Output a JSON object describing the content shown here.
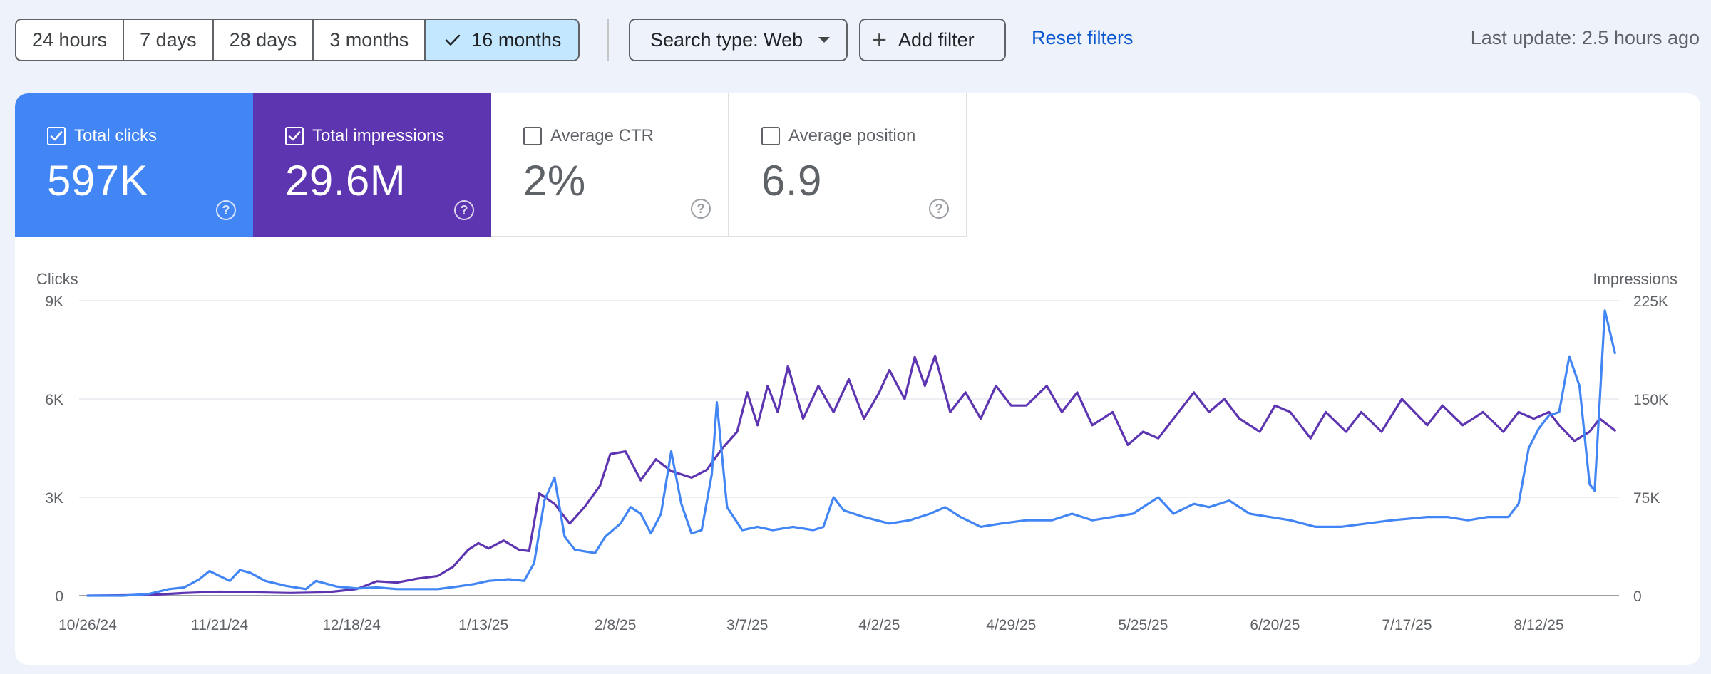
{
  "toolbar": {
    "date_ranges": [
      "24 hours",
      "7 days",
      "28 days",
      "3 months",
      "16 months"
    ],
    "selected_range": "16 months",
    "search_type": "Search type: Web",
    "add_filter": "Add filter",
    "reset_filters": "Reset filters",
    "last_update": "Last update: 2.5 hours ago"
  },
  "metrics": [
    {
      "label": "Total clicks",
      "value": "597K",
      "checked": true,
      "color": "#4285f4"
    },
    {
      "label": "Total impressions",
      "value": "29.6M",
      "checked": true,
      "color": "#5e35b1"
    },
    {
      "label": "Average CTR",
      "value": "2%",
      "checked": false
    },
    {
      "label": "Average position",
      "value": "6.9",
      "checked": false
    }
  ],
  "colors": {
    "clicks": "#4285f4",
    "impressions": "#5e35b1",
    "selected_range_bg": "#c2e7ff",
    "link": "#0b57d0"
  },
  "chart_data": {
    "type": "line",
    "ylabel_left": "Clicks",
    "ylabel_right": "Impressions",
    "yticks_left": [
      "0",
      "3K",
      "6K",
      "9K"
    ],
    "yticks_right": [
      "0",
      "75K",
      "150K",
      "225K"
    ],
    "ylim_left": [
      0,
      9000
    ],
    "ylim_right": [
      0,
      225000
    ],
    "xticks": [
      "10/26/24",
      "11/21/24",
      "12/18/24",
      "1/13/25",
      "2/8/25",
      "3/7/25",
      "4/2/25",
      "4/29/25",
      "5/25/25",
      "6/20/25",
      "7/17/25",
      "8/12/25"
    ],
    "x_start": "2024-10-26",
    "x_end": "2025-08-23",
    "grid": true,
    "series": [
      {
        "name": "Clicks",
        "axis": "left",
        "color": "#4285f4",
        "points": [
          [
            "2024-10-26",
            0
          ],
          [
            "2024-11-02",
            0
          ],
          [
            "2024-11-07",
            50
          ],
          [
            "2024-11-11",
            200
          ],
          [
            "2024-11-14",
            250
          ],
          [
            "2024-11-17",
            500
          ],
          [
            "2024-11-19",
            750
          ],
          [
            "2024-11-21",
            600
          ],
          [
            "2024-11-23",
            450
          ],
          [
            "2024-11-25",
            780
          ],
          [
            "2024-11-27",
            700
          ],
          [
            "2024-11-30",
            450
          ],
          [
            "2024-12-04",
            300
          ],
          [
            "2024-12-08",
            200
          ],
          [
            "2024-12-10",
            450
          ],
          [
            "2024-12-14",
            280
          ],
          [
            "2024-12-18",
            220
          ],
          [
            "2024-12-22",
            250
          ],
          [
            "2024-12-26",
            200
          ],
          [
            "2024-12-30",
            200
          ],
          [
            "2025-01-03",
            200
          ],
          [
            "2025-01-07",
            280
          ],
          [
            "2025-01-10",
            350
          ],
          [
            "2025-01-13",
            450
          ],
          [
            "2025-01-17",
            500
          ],
          [
            "2025-01-20",
            450
          ],
          [
            "2025-01-22",
            1000
          ],
          [
            "2025-01-24",
            2900
          ],
          [
            "2025-01-26",
            3600
          ],
          [
            "2025-01-28",
            1800
          ],
          [
            "2025-01-30",
            1400
          ],
          [
            "2025-02-01",
            1350
          ],
          [
            "2025-02-03",
            1300
          ],
          [
            "2025-02-05",
            1800
          ],
          [
            "2025-02-08",
            2200
          ],
          [
            "2025-02-10",
            2700
          ],
          [
            "2025-02-12",
            2500
          ],
          [
            "2025-02-14",
            1900
          ],
          [
            "2025-02-16",
            2500
          ],
          [
            "2025-02-18",
            4400
          ],
          [
            "2025-02-20",
            2800
          ],
          [
            "2025-02-22",
            1900
          ],
          [
            "2025-02-24",
            2000
          ],
          [
            "2025-02-26",
            3700
          ],
          [
            "2025-02-27",
            5900
          ],
          [
            "2025-03-01",
            2700
          ],
          [
            "2025-03-04",
            2000
          ],
          [
            "2025-03-07",
            2100
          ],
          [
            "2025-03-10",
            2000
          ],
          [
            "2025-03-14",
            2100
          ],
          [
            "2025-03-18",
            2000
          ],
          [
            "2025-03-20",
            2100
          ],
          [
            "2025-03-22",
            3000
          ],
          [
            "2025-03-24",
            2600
          ],
          [
            "2025-03-28",
            2400
          ],
          [
            "2025-04-02",
            2200
          ],
          [
            "2025-04-06",
            2300
          ],
          [
            "2025-04-10",
            2500
          ],
          [
            "2025-04-13",
            2700
          ],
          [
            "2025-04-16",
            2400
          ],
          [
            "2025-04-20",
            2100
          ],
          [
            "2025-04-24",
            2200
          ],
          [
            "2025-04-29",
            2300
          ],
          [
            "2025-05-04",
            2300
          ],
          [
            "2025-05-08",
            2500
          ],
          [
            "2025-05-12",
            2300
          ],
          [
            "2025-05-16",
            2400
          ],
          [
            "2025-05-20",
            2500
          ],
          [
            "2025-05-25",
            3000
          ],
          [
            "2025-05-28",
            2500
          ],
          [
            "2025-06-01",
            2800
          ],
          [
            "2025-06-04",
            2700
          ],
          [
            "2025-06-08",
            2900
          ],
          [
            "2025-06-12",
            2500
          ],
          [
            "2025-06-16",
            2400
          ],
          [
            "2025-06-20",
            2300
          ],
          [
            "2025-06-25",
            2100
          ],
          [
            "2025-06-30",
            2100
          ],
          [
            "2025-07-05",
            2200
          ],
          [
            "2025-07-10",
            2300
          ],
          [
            "2025-07-17",
            2400
          ],
          [
            "2025-07-21",
            2400
          ],
          [
            "2025-07-25",
            2300
          ],
          [
            "2025-07-29",
            2400
          ],
          [
            "2025-08-02",
            2400
          ],
          [
            "2025-08-04",
            2800
          ],
          [
            "2025-08-06",
            4500
          ],
          [
            "2025-08-08",
            5100
          ],
          [
            "2025-08-10",
            5500
          ],
          [
            "2025-08-12",
            5600
          ],
          [
            "2025-08-14",
            7300
          ],
          [
            "2025-08-16",
            6400
          ],
          [
            "2025-08-18",
            3400
          ],
          [
            "2025-08-19",
            3200
          ],
          [
            "2025-08-21",
            8700
          ],
          [
            "2025-08-23",
            7400
          ]
        ]
      },
      {
        "name": "Impressions",
        "axis": "right",
        "color": "#5e35b1",
        "points": [
          [
            "2024-10-26",
            0
          ],
          [
            "2024-11-07",
            500
          ],
          [
            "2024-11-14",
            2000
          ],
          [
            "2024-11-21",
            3000
          ],
          [
            "2024-11-28",
            2500
          ],
          [
            "2024-12-05",
            2000
          ],
          [
            "2024-12-12",
            2500
          ],
          [
            "2024-12-18",
            5000
          ],
          [
            "2024-12-22",
            11000
          ],
          [
            "2024-12-26",
            10000
          ],
          [
            "2024-12-30",
            13000
          ],
          [
            "2025-01-03",
            15000
          ],
          [
            "2025-01-06",
            22000
          ],
          [
            "2025-01-09",
            35000
          ],
          [
            "2025-01-11",
            40000
          ],
          [
            "2025-01-13",
            36000
          ],
          [
            "2025-01-16",
            42000
          ],
          [
            "2025-01-19",
            35000
          ],
          [
            "2025-01-21",
            34000
          ],
          [
            "2025-01-23",
            78000
          ],
          [
            "2025-01-26",
            70000
          ],
          [
            "2025-01-29",
            55000
          ],
          [
            "2025-02-01",
            68000
          ],
          [
            "2025-02-04",
            84000
          ],
          [
            "2025-02-06",
            108000
          ],
          [
            "2025-02-09",
            110000
          ],
          [
            "2025-02-12",
            88000
          ],
          [
            "2025-02-15",
            104000
          ],
          [
            "2025-02-18",
            95000
          ],
          [
            "2025-02-22",
            90000
          ],
          [
            "2025-02-25",
            96000
          ],
          [
            "2025-02-28",
            112000
          ],
          [
            "2025-03-03",
            125000
          ],
          [
            "2025-03-05",
            155000
          ],
          [
            "2025-03-07",
            130000
          ],
          [
            "2025-03-09",
            160000
          ],
          [
            "2025-03-11",
            140000
          ],
          [
            "2025-03-13",
            175000
          ],
          [
            "2025-03-16",
            135000
          ],
          [
            "2025-03-19",
            160000
          ],
          [
            "2025-03-22",
            140000
          ],
          [
            "2025-03-25",
            165000
          ],
          [
            "2025-03-28",
            135000
          ],
          [
            "2025-03-31",
            155000
          ],
          [
            "2025-04-02",
            172000
          ],
          [
            "2025-04-05",
            150000
          ],
          [
            "2025-04-07",
            182000
          ],
          [
            "2025-04-09",
            160000
          ],
          [
            "2025-04-11",
            183000
          ],
          [
            "2025-04-14",
            140000
          ],
          [
            "2025-04-17",
            155000
          ],
          [
            "2025-04-20",
            135000
          ],
          [
            "2025-04-23",
            160000
          ],
          [
            "2025-04-26",
            145000
          ],
          [
            "2025-04-29",
            145000
          ],
          [
            "2025-05-03",
            160000
          ],
          [
            "2025-05-06",
            140000
          ],
          [
            "2025-05-09",
            155000
          ],
          [
            "2025-05-12",
            130000
          ],
          [
            "2025-05-16",
            140000
          ],
          [
            "2025-05-19",
            115000
          ],
          [
            "2025-05-22",
            125000
          ],
          [
            "2025-05-25",
            120000
          ],
          [
            "2025-05-28",
            135000
          ],
          [
            "2025-06-01",
            155000
          ],
          [
            "2025-06-04",
            140000
          ],
          [
            "2025-06-07",
            150000
          ],
          [
            "2025-06-10",
            135000
          ],
          [
            "2025-06-14",
            125000
          ],
          [
            "2025-06-17",
            145000
          ],
          [
            "2025-06-20",
            140000
          ],
          [
            "2025-06-24",
            120000
          ],
          [
            "2025-06-27",
            140000
          ],
          [
            "2025-07-01",
            125000
          ],
          [
            "2025-07-04",
            140000
          ],
          [
            "2025-07-08",
            125000
          ],
          [
            "2025-07-12",
            150000
          ],
          [
            "2025-07-17",
            130000
          ],
          [
            "2025-07-20",
            145000
          ],
          [
            "2025-07-24",
            130000
          ],
          [
            "2025-07-28",
            140000
          ],
          [
            "2025-08-01",
            125000
          ],
          [
            "2025-08-04",
            140000
          ],
          [
            "2025-08-07",
            135000
          ],
          [
            "2025-08-10",
            140000
          ],
          [
            "2025-08-12",
            130000
          ],
          [
            "2025-08-15",
            118000
          ],
          [
            "2025-08-18",
            125000
          ],
          [
            "2025-08-20",
            135000
          ],
          [
            "2025-08-23",
            126000
          ]
        ]
      }
    ]
  }
}
